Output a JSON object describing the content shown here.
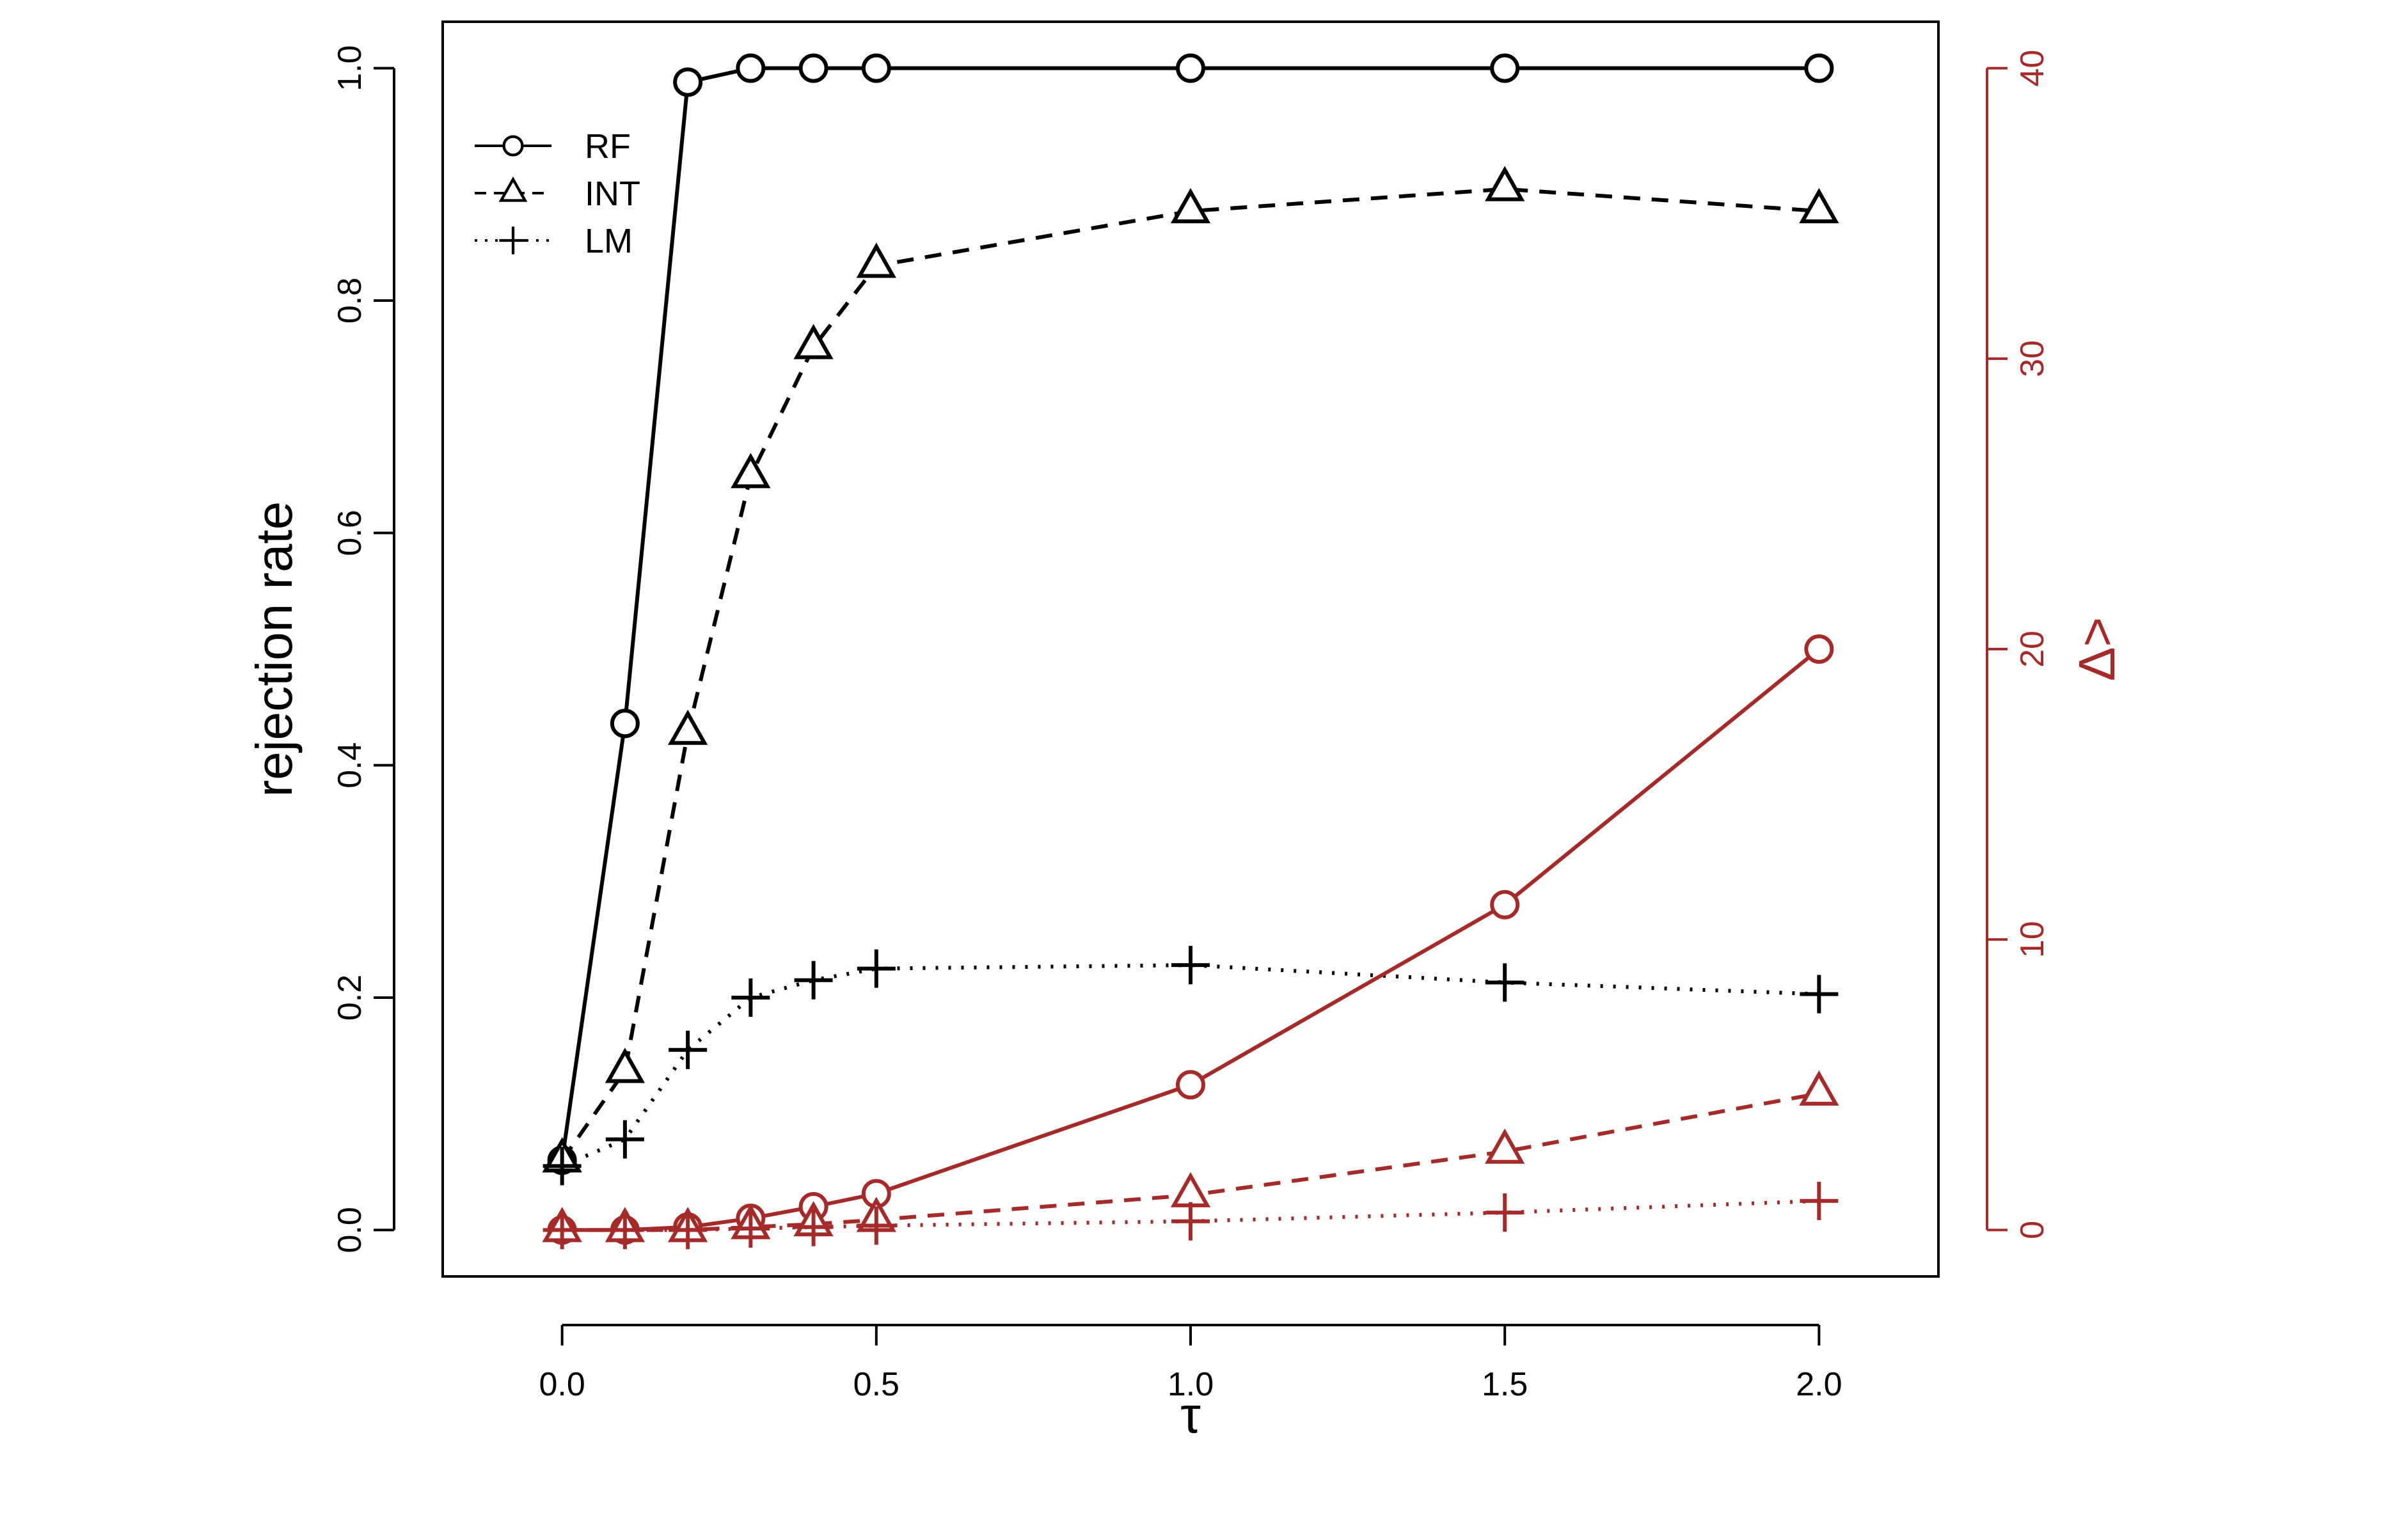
{
  "chart_data": {
    "type": "line",
    "xlabel": "τ",
    "ylabel": "rejection rate",
    "y2label": "Δ>",
    "x_ticks": [
      0.0,
      0.5,
      1.0,
      1.5,
      2.0
    ],
    "x_tick_labels": [
      "0.0",
      "0.5",
      "1.0",
      "1.5",
      "2.0"
    ],
    "y_ticks": [
      0.0,
      0.2,
      0.4,
      0.6,
      0.8,
      1.0
    ],
    "y_tick_labels": [
      "0.0",
      "0.2",
      "0.4",
      "0.6",
      "0.8",
      "1.0"
    ],
    "y2_ticks": [
      0,
      10,
      20,
      30,
      40
    ],
    "y2_tick_labels": [
      "0",
      "10",
      "20",
      "30",
      "40"
    ],
    "xlim": [
      -0.19,
      2.19
    ],
    "ylim": [
      -0.04,
      1.04
    ],
    "y2lim": [
      -1.6,
      41.6
    ],
    "legend_position": "top-left",
    "colors": {
      "primary": "#000000",
      "secondary": "#a52a2a"
    },
    "x": [
      0.0,
      0.1,
      0.2,
      0.3,
      0.4,
      0.5,
      1.0,
      1.5,
      2.0
    ],
    "series": [
      {
        "name": "RF",
        "axis": "left",
        "marker": "circle",
        "line": "solid",
        "values": [
          0.06,
          0.436,
          0.988,
          1.0,
          1.0,
          1.0,
          1.0,
          1.0,
          1.0
        ]
      },
      {
        "name": "INT",
        "axis": "left",
        "marker": "triangle",
        "line": "dashed",
        "values": [
          0.06,
          0.137,
          0.428,
          0.649,
          0.76,
          0.83,
          0.877,
          0.896,
          0.877
        ]
      },
      {
        "name": "LM",
        "axis": "left",
        "marker": "plus",
        "line": "dotted",
        "values": [
          0.055,
          0.078,
          0.155,
          0.2,
          0.215,
          0.225,
          0.228,
          0.213,
          0.203
        ]
      },
      {
        "axis": "right",
        "marker": "circle",
        "line": "solid",
        "values": [
          0.0,
          0.0,
          0.1,
          0.4,
          0.8,
          1.25,
          5.0,
          11.2,
          20.0
        ]
      },
      {
        "axis": "right",
        "marker": "triangle",
        "line": "dashed",
        "values": [
          0.0,
          0.0,
          0.0,
          0.1,
          0.2,
          0.35,
          1.2,
          2.7,
          4.7
        ]
      },
      {
        "axis": "right",
        "marker": "plus",
        "line": "dotted",
        "values": [
          0.0,
          0.0,
          0.0,
          0.05,
          0.1,
          0.15,
          0.3,
          0.6,
          1.0
        ]
      }
    ]
  }
}
